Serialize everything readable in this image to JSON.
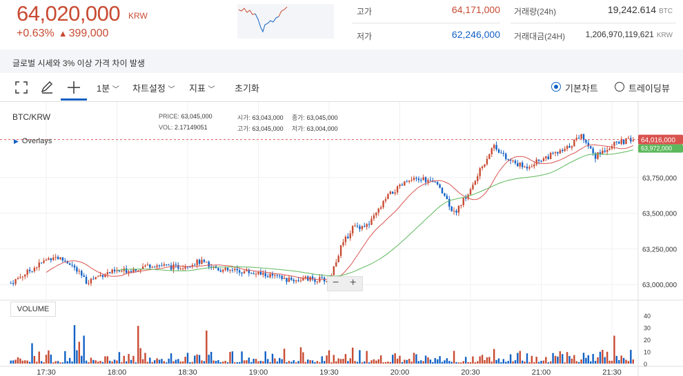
{
  "header": {
    "price": "64,020,000",
    "price_unit": "KRW",
    "change_pct": "+0.63%",
    "change_arrow": "▲",
    "change_amt": "399,000",
    "high_label": "고가",
    "high_value": "64,171,000",
    "low_label": "저가",
    "low_value": "62,246,000",
    "volume_label": "거래량(24h)",
    "volume_value": "19,242.614",
    "volume_unit": "BTC",
    "amount_label": "거래대금(24H)",
    "amount_value": "1,206,970,119,621",
    "amount_unit": "KRW"
  },
  "notice": "글로벌 시세와 3% 이상 가격 차이 발생",
  "toolbar": {
    "interval": "1분",
    "chart_settings": "차트설정",
    "indicators": "지표",
    "reset": "초기화",
    "basic_chart": "기본차트",
    "trading_view": "트레이딩뷰"
  },
  "legend": {
    "pair": "BTC/KRW",
    "overlays": "Overlays",
    "price_label": "PRICE:",
    "price_value": "63,045,000",
    "open_label": "시가:",
    "open_value": "63,043,000",
    "close_label": "종가:",
    "close_value": "63,045,000",
    "vol_label": "VOL:",
    "vol_value": "2.17149051",
    "high_label": "고가:",
    "high_value": "63,045,000",
    "low_label": "저가:",
    "low_value": "63,004,000"
  },
  "volume_panel_label": "VOLUME",
  "colors": {
    "up": "#c84a31",
    "down": "#1261c4",
    "ma_short": "#d9534f",
    "ma_long": "#5cb85c"
  },
  "chart_data": {
    "type": "candlestick",
    "time_ticks": [
      "17:30",
      "18:00",
      "18:30",
      "19:00",
      "19:30",
      "20:00",
      "20:30",
      "21:00",
      "21:30"
    ],
    "y_ticks": [
      "63,000,000",
      "63,250,000",
      "63,500,000",
      "63,750,000"
    ],
    "y_tick_values": [
      63000000,
      63250000,
      63500000,
      63750000
    ],
    "ylim": [
      62890000,
      64270000
    ],
    "last_price_label": "64,016,000",
    "last_price": 64016000,
    "ma_label": "63,972,000",
    "volume_ticks": [
      0,
      10,
      20,
      30,
      40
    ],
    "volume_max": 48,
    "x_start_min": 0,
    "x_end_min": 270,
    "series": [
      {
        "time_min": 0,
        "value": 63010000
      },
      {
        "time_min": 10,
        "value": 63120000
      },
      {
        "time_min": 18,
        "value": 63200000
      },
      {
        "time_min": 25,
        "value": 63150000
      },
      {
        "time_min": 32,
        "value": 63020000
      },
      {
        "time_min": 40,
        "value": 63080000
      },
      {
        "time_min": 50,
        "value": 63100000
      },
      {
        "time_min": 60,
        "value": 63140000
      },
      {
        "time_min": 70,
        "value": 63120000
      },
      {
        "time_min": 80,
        "value": 63160000
      },
      {
        "time_min": 90,
        "value": 63100000
      },
      {
        "time_min": 100,
        "value": 63090000
      },
      {
        "time_min": 110,
        "value": 63060000
      },
      {
        "time_min": 118,
        "value": 63030000
      },
      {
        "time_min": 125,
        "value": 63040000
      },
      {
        "time_min": 135,
        "value": 63030000
      },
      {
        "time_min": 140,
        "value": 63260000
      },
      {
        "time_min": 145,
        "value": 63400000
      },
      {
        "time_min": 152,
        "value": 63420000
      },
      {
        "time_min": 160,
        "value": 63620000
      },
      {
        "time_min": 168,
        "value": 63720000
      },
      {
        "time_min": 175,
        "value": 63740000
      },
      {
        "time_min": 182,
        "value": 63690000
      },
      {
        "time_min": 188,
        "value": 63500000
      },
      {
        "time_min": 195,
        "value": 63660000
      },
      {
        "time_min": 200,
        "value": 63830000
      },
      {
        "time_min": 205,
        "value": 63980000
      },
      {
        "time_min": 210,
        "value": 63880000
      },
      {
        "time_min": 218,
        "value": 63820000
      },
      {
        "time_min": 225,
        "value": 63880000
      },
      {
        "time_min": 235,
        "value": 63940000
      },
      {
        "time_min": 242,
        "value": 64050000
      },
      {
        "time_min": 248,
        "value": 63900000
      },
      {
        "time_min": 255,
        "value": 63980000
      },
      {
        "time_min": 262,
        "value": 64010000
      },
      {
        "time_min": 270,
        "value": 64016000
      }
    ]
  }
}
